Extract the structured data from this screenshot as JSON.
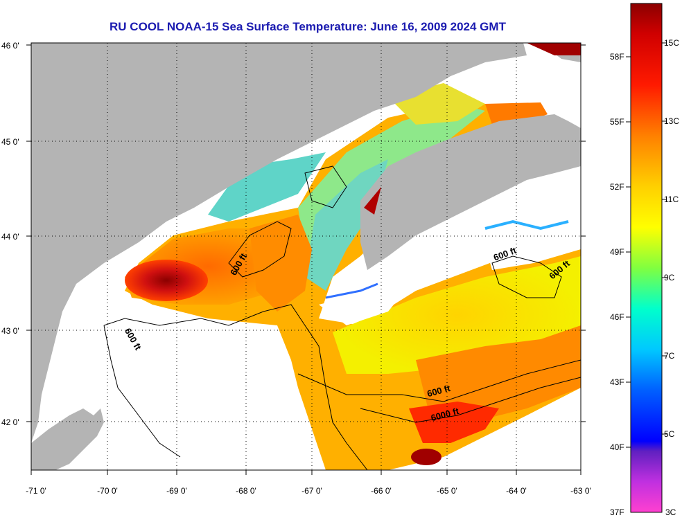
{
  "title": "RU COOL  NOAA-15  Sea Surface Temperature:  June 16, 2009 2024 GMT",
  "map": {
    "longitude_ticks": [
      "-71 0'",
      "-70 0'",
      "-69 0'",
      "-68 0'",
      "-67 0'",
      "-66 0'",
      "-65 0'",
      "-64 0'",
      "-63 0'"
    ],
    "latitude_ticks": [
      "46 0'",
      "45 0'",
      "44 0'",
      "43 0'",
      "42 0'"
    ],
    "grid": "dotted",
    "colors": {
      "land": "#b4b4b4",
      "no_data": "#ffffff",
      "contour": "#000000"
    },
    "contour_labels": [
      "600 ft",
      "600 ft",
      "600 ft",
      "600 ft",
      "600 ft",
      "6000 ft"
    ]
  },
  "colorbar": {
    "fahrenheit_labels": [
      "58F",
      "55F",
      "52F",
      "49F",
      "46F",
      "43F",
      "40F",
      "37F"
    ],
    "celsius_labels": [
      "15C",
      "13C",
      "11C",
      "9C",
      "7C",
      "5C",
      "3C"
    ],
    "colors_top_to_bottom": [
      "#8b0000",
      "#ff1a00",
      "#ff8000",
      "#ffd000",
      "#ffff00",
      "#80ff40",
      "#00ffcc",
      "#00c8ff",
      "#0060ff",
      "#0000ff",
      "#6020c0",
      "#c030e0",
      "#ff40d0"
    ]
  }
}
